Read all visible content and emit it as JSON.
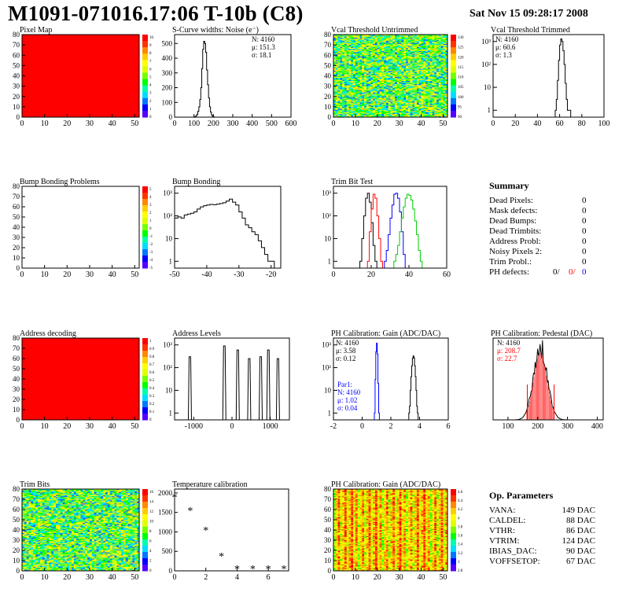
{
  "header": {
    "title": "M1091-071016.17:06 T-10b (C8)",
    "date": "Sat Nov 15 09:28:17 2008"
  },
  "colors": {
    "fill_red": "#ff0000",
    "black": "#000000",
    "red": "#ff0000",
    "blue": "#0000ff",
    "green": "#00cc00"
  },
  "palette": [
    "#5500ff",
    "#0000ff",
    "#0077ff",
    "#00ddff",
    "#00ffaa",
    "#00ff00",
    "#77ff00",
    "#ddff00",
    "#ffff00",
    "#ffcc00",
    "#ff8800",
    "#ff3300",
    "#ff0000"
  ],
  "chart_data": [
    {
      "id": "pixel-map",
      "type": "heatmap",
      "title": "Pixel Map",
      "xticks": [
        0,
        10,
        20,
        30,
        40,
        50
      ],
      "yticks": [
        0,
        10,
        20,
        30,
        40,
        50,
        60,
        70,
        80
      ],
      "xlim": [
        0,
        52
      ],
      "ylim": [
        0,
        80
      ],
      "fill": "uniform",
      "zticks": [
        "10",
        "9",
        "8",
        "7",
        "6",
        "5",
        "4",
        "3",
        "2",
        "1",
        "0"
      ]
    },
    {
      "id": "scurve-noise",
      "type": "bar",
      "title": "S-Curve widths: Noise (e⁻)",
      "xticks": [
        0,
        100,
        200,
        300,
        400,
        500,
        600
      ],
      "yticks": [
        0,
        100,
        200,
        300,
        400,
        500
      ],
      "xlim": [
        0,
        600
      ],
      "ylim": [
        0,
        560
      ],
      "stats": [
        "N: 4160",
        "μ: 151.3",
        "σ: 18.1"
      ],
      "hist": {
        "x0": 100,
        "dx": 5,
        "values": [
          2,
          4,
          10,
          20,
          40,
          70,
          120,
          200,
          330,
          460,
          515,
          500,
          440,
          320,
          220,
          130,
          70,
          35,
          15,
          5,
          2
        ]
      }
    },
    {
      "id": "vcal-untrimmed",
      "type": "heatmap",
      "title": "Vcal Threshold Untrimmed",
      "xticks": [
        0,
        10,
        20,
        30,
        40,
        50
      ],
      "yticks": [
        0,
        10,
        20,
        30,
        40,
        50,
        60,
        70,
        80
      ],
      "xlim": [
        0,
        52
      ],
      "ylim": [
        0,
        80
      ],
      "fill": "noise",
      "zticks": [
        "130",
        "125",
        "120",
        "115",
        "110",
        "105",
        "100",
        "95",
        "90"
      ]
    },
    {
      "id": "vcal-trimmed",
      "type": "bar",
      "title": "Vcal Threshold Trimmed",
      "xticks": [
        0,
        20,
        40,
        60,
        80,
        100
      ],
      "ylog": true,
      "ylim": [
        0.5,
        2000
      ],
      "xlim": [
        0,
        100
      ],
      "stats": [
        "N: 4160",
        "μ: 60.6",
        "σ: 1.3"
      ],
      "hist": {
        "x0": 56,
        "dx": 1,
        "values": [
          1,
          3,
          20,
          150,
          700,
          1300,
          1000,
          400,
          100,
          15,
          3,
          1,
          1,
          1
        ]
      }
    },
    {
      "id": "bump-problems",
      "type": "heatmap",
      "title": "Bump Bonding Problems",
      "xticks": [
        0,
        10,
        20,
        30,
        40,
        50
      ],
      "yticks": [
        0,
        10,
        20,
        30,
        40,
        50,
        60,
        70,
        80
      ],
      "xlim": [
        0,
        52
      ],
      "ylim": [
        0,
        80
      ],
      "fill": "empty",
      "zticks": [
        "5",
        "4",
        "3",
        "2",
        "1",
        "0",
        "-1",
        "-2",
        "-3",
        "-4",
        "-5"
      ]
    },
    {
      "id": "bump-bonding",
      "type": "bar",
      "title": "Bump Bonding",
      "xticks": [
        -50,
        -40,
        -30,
        -20
      ],
      "ylog": true,
      "xlim": [
        -50,
        -17
      ],
      "ylim": [
        0.5,
        2000
      ],
      "hist": {
        "x0": -50,
        "dx": 1,
        "values": [
          80,
          90,
          80,
          110,
          120,
          130,
          150,
          200,
          250,
          280,
          300,
          320,
          310,
          330,
          350,
          380,
          450,
          550,
          400,
          300,
          150,
          80,
          40,
          30,
          20,
          15,
          8,
          4,
          2,
          1,
          1,
          0,
          0
        ]
      }
    },
    {
      "id": "trim-bit-test",
      "type": "line",
      "title": "Trim Bit Test",
      "xticks": [
        0,
        20,
        40,
        60
      ],
      "ylog": true,
      "xlim": [
        0,
        60
      ],
      "ylim": [
        0.5,
        2000
      ],
      "series": [
        {
          "color": "#000000",
          "x0": 14,
          "dx": 1,
          "values": [
            1,
            10,
            100,
            600,
            1000,
            400,
            50,
            5,
            1
          ]
        },
        {
          "color": "#ff0000",
          "x0": 18,
          "dx": 1,
          "values": [
            1,
            20,
            200,
            900,
            600,
            100,
            10,
            1
          ]
        },
        {
          "color": "#0000ff",
          "x0": 27,
          "dx": 1,
          "values": [
            1,
            3,
            15,
            80,
            300,
            900,
            1000,
            600,
            150,
            20,
            2
          ]
        },
        {
          "color": "#00cc00",
          "x0": 32,
          "dx": 1,
          "values": [
            1,
            2,
            5,
            20,
            80,
            250,
            600,
            900,
            800,
            500,
            200,
            60,
            15,
            3,
            1
          ]
        }
      ]
    },
    {
      "id": "address-decoding",
      "type": "heatmap",
      "title": "Address decoding",
      "xticks": [
        0,
        10,
        20,
        30,
        40,
        50
      ],
      "yticks": [
        0,
        10,
        20,
        30,
        40,
        50,
        60,
        70,
        80
      ],
      "xlim": [
        0,
        52
      ],
      "ylim": [
        0,
        80
      ],
      "fill": "uniform",
      "zticks": [
        "1",
        "0.9",
        "0.8",
        "0.7",
        "0.6",
        "0.5",
        "0.4",
        "0.3",
        "0.2",
        "0.1",
        "0"
      ]
    },
    {
      "id": "address-levels",
      "type": "bar",
      "title": "Address Levels",
      "xticks": [
        -1000,
        0,
        1000
      ],
      "ylog": true,
      "xlim": [
        -1500,
        1500
      ],
      "ylim": [
        0.5,
        2000
      ],
      "spikes": [
        {
          "x": -1100,
          "h": 300
        },
        {
          "x": -200,
          "h": 900
        },
        {
          "x": 150,
          "h": 600
        },
        {
          "x": 450,
          "h": 250
        },
        {
          "x": 750,
          "h": 300
        },
        {
          "x": 950,
          "h": 600
        },
        {
          "x": 1200,
          "h": 250
        }
      ]
    },
    {
      "id": "ph-gain",
      "type": "bar",
      "title": "PH Calibration: Gain (ADC/DAC)",
      "xticks": [
        -2,
        0,
        2,
        4,
        6
      ],
      "ylog": true,
      "xlim": [
        -2,
        6
      ],
      "ylim": [
        0.5,
        2000
      ],
      "stats": [
        "N: 4160",
        "μ: 3.58",
        "σ: 0.12"
      ],
      "stats2": [
        "Par1:",
        "N: 4160",
        "μ: 1.02",
        "σ: 0.04"
      ],
      "series": [
        {
          "color": "#0000ff",
          "x0": 0.85,
          "dx": 0.05,
          "values": [
            1,
            30,
            500,
            1200,
            400,
            20,
            1
          ]
        },
        {
          "color": "#000000",
          "x0": 3.25,
          "dx": 0.05,
          "values": [
            1,
            2,
            10,
            40,
            120,
            260,
            330,
            270,
            120,
            40,
            10,
            2,
            1
          ]
        }
      ]
    },
    {
      "id": "ph-pedestal",
      "type": "bar",
      "title": "PH Calibration: Pedestal (DAC)",
      "xticks": [
        100,
        200,
        300,
        400
      ],
      "xlim": [
        50,
        420
      ],
      "ylim": [
        0,
        1
      ],
      "stats": [
        "N: 4160",
        "μ: 208.7",
        "σ: 22.7"
      ],
      "gaussian": {
        "mean": 208.7,
        "sigma": 22.7,
        "lower": 165,
        "upper": 255
      }
    },
    {
      "id": "trim-bits",
      "type": "heatmap",
      "title": "Trim Bits",
      "xticks": [
        0,
        10,
        20,
        30,
        40,
        50
      ],
      "yticks": [
        0,
        10,
        20,
        30,
        40,
        50,
        60,
        70,
        80
      ],
      "xlim": [
        0,
        52
      ],
      "ylim": [
        0,
        80
      ],
      "fill": "noise",
      "zticks": [
        "16",
        "14",
        "12",
        "10",
        "8",
        "6",
        "4",
        "2",
        "0"
      ]
    },
    {
      "id": "temperature-calibration",
      "type": "scatter",
      "title": "Temperature calibration",
      "xticks": [
        0,
        2,
        4,
        6
      ],
      "yticks": [
        0,
        500,
        1000,
        1500,
        2000
      ],
      "xlim": [
        0,
        7.3
      ],
      "ylim": [
        0,
        2100
      ],
      "points": [
        [
          0,
          1900
        ],
        [
          1,
          1550
        ],
        [
          2,
          1050
        ],
        [
          3,
          380
        ],
        [
          4,
          60
        ],
        [
          5,
          60
        ],
        [
          6,
          60
        ],
        [
          7,
          60
        ]
      ]
    },
    {
      "id": "ph-gain-map",
      "type": "heatmap",
      "title": "PH Calibration: Gain (ADC/DAC)",
      "xticks": [
        0,
        10,
        20,
        30,
        40,
        50
      ],
      "yticks": [
        0,
        10,
        20,
        30,
        40,
        50,
        60,
        70,
        80
      ],
      "xlim": [
        0,
        52
      ],
      "ylim": [
        0,
        80
      ],
      "fill": "columns",
      "zticks": [
        "4.6",
        "4.4",
        "4.2",
        "4",
        "3.8",
        "3.6",
        "3.4",
        "3.2",
        "3",
        "2.8"
      ]
    }
  ],
  "summary": {
    "header": "Summary",
    "rows": [
      {
        "label": "Dead Pixels:",
        "value": "0"
      },
      {
        "label": "Mask defects:",
        "value": "0"
      },
      {
        "label": "Dead Bumps:",
        "value": "0"
      },
      {
        "label": "Dead Trimbits:",
        "value": "0"
      },
      {
        "label": "Address Probl:",
        "value": "0"
      },
      {
        "label": "Noisy Pixels 2:",
        "value": "0"
      },
      {
        "label": "Trim Probl.:",
        "value": "0"
      }
    ],
    "ph_label": "PH defects:",
    "ph_values": [
      "0/",
      "0/",
      "0"
    ]
  },
  "op_parameters": {
    "header": "Op. Parameters",
    "rows": [
      {
        "label": "VANA:",
        "value": "149 DAC"
      },
      {
        "label": "CALDEL:",
        "value": "88 DAC"
      },
      {
        "label": "VTHR:",
        "value": "86 DAC"
      },
      {
        "label": "VTRIM:",
        "value": "124 DAC"
      },
      {
        "label": "IBIAS_DAC:",
        "value": "90 DAC"
      },
      {
        "label": "VOFFSETOP:",
        "value": "67 DAC"
      }
    ]
  }
}
